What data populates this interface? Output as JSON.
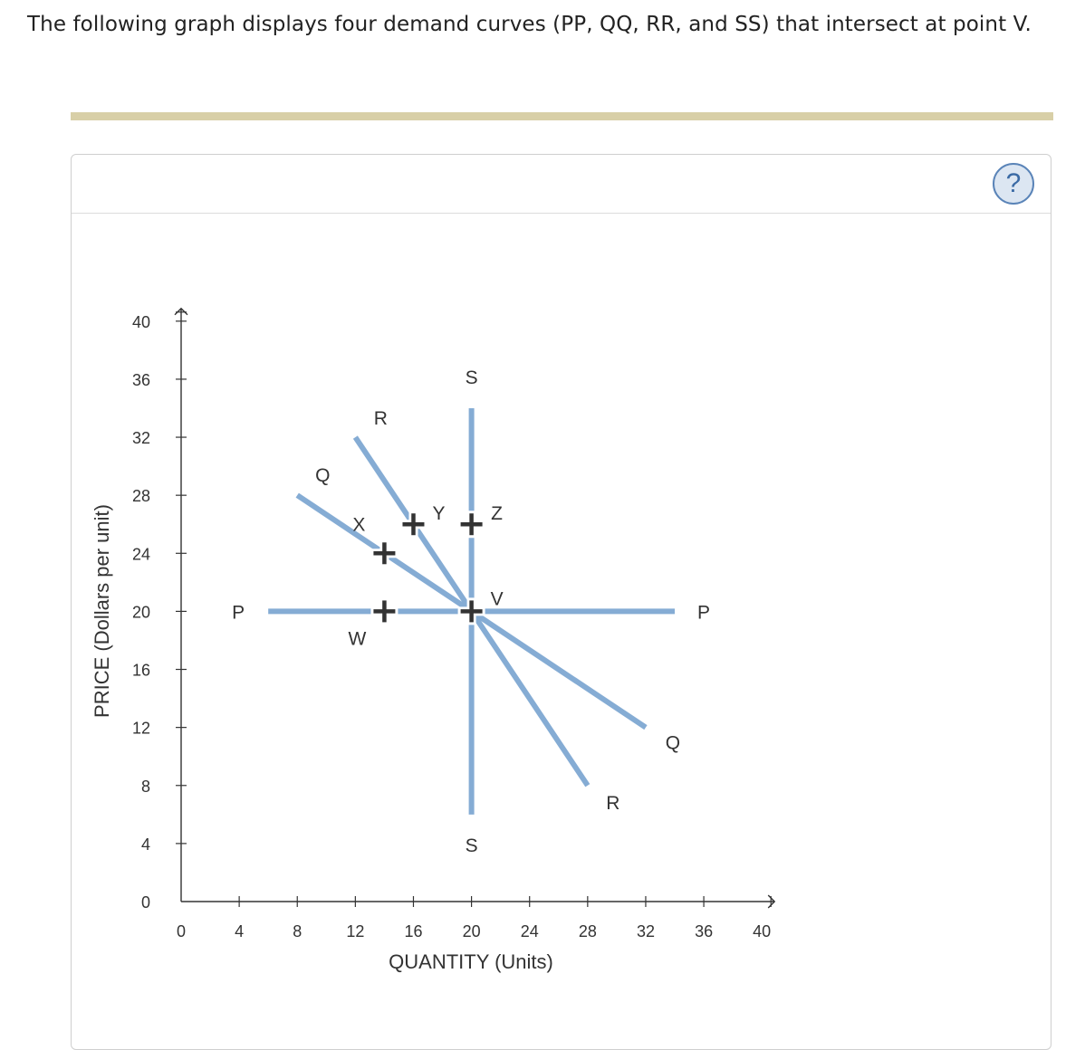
{
  "question": "The following graph displays four demand curves (PP, QQ, RR, and SS) that intersect at point V.",
  "help_symbol": "?",
  "chart_data": {
    "type": "line",
    "xlabel": "QUANTITY (Units)",
    "ylabel": "PRICE (Dollars per unit)",
    "xlim": [
      0,
      40
    ],
    "ylim": [
      0,
      40
    ],
    "xticks": [
      "0",
      "4",
      "8",
      "12",
      "16",
      "20",
      "24",
      "28",
      "32",
      "36",
      "40"
    ],
    "yticks": [
      "0",
      "4",
      "8",
      "12",
      "16",
      "20",
      "24",
      "28",
      "32",
      "36",
      "40"
    ],
    "curves": [
      {
        "start_label": "P",
        "end_label": "P",
        "points": [
          [
            6,
            20
          ],
          [
            34,
            20
          ]
        ]
      },
      {
        "start_label": "Q",
        "end_label": "Q",
        "points": [
          [
            8,
            28
          ],
          [
            32,
            12
          ]
        ]
      },
      {
        "start_label": "R",
        "end_label": "R",
        "points": [
          [
            12,
            32
          ],
          [
            28,
            8
          ]
        ]
      },
      {
        "start_label": "S",
        "end_label": "S",
        "points": [
          [
            20,
            34
          ],
          [
            20,
            6
          ]
        ]
      }
    ],
    "points": [
      {
        "label": "W",
        "x": 14,
        "y": 20
      },
      {
        "label": "X",
        "x": 14,
        "y": 24
      },
      {
        "label": "Y",
        "x": 16,
        "y": 26
      },
      {
        "label": "Z",
        "x": 20,
        "y": 26
      },
      {
        "label": "V",
        "x": 20,
        "y": 20
      }
    ],
    "colors": {
      "curve": "#85acd4",
      "axis": "#333333",
      "marker": "#333333"
    }
  }
}
